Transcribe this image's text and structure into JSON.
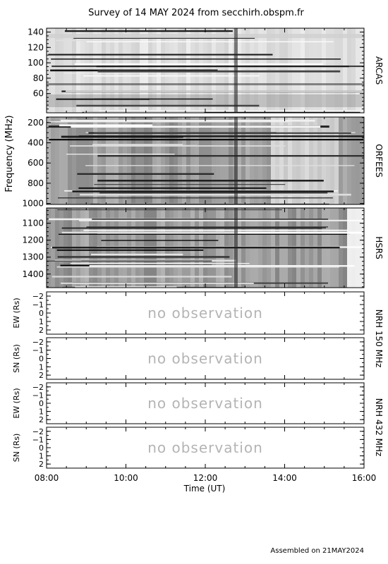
{
  "title": "Survey of 14 MAY 2024 from secchirh.obspm.fr",
  "footer": "Assembled on 21MAY2024",
  "colors": {
    "frame": "#000000",
    "no_observation_text": "#b4b4b4",
    "background": "#ffffff"
  },
  "chart_data": [
    {
      "type": "heatmap",
      "panel": "ARCAS",
      "label": "ARCAS",
      "ylim": [
        145,
        35
      ],
      "yticks": [
        60,
        80,
        100,
        120,
        140
      ],
      "ylabel": ""
    },
    {
      "type": "heatmap",
      "panel": "ORFEES",
      "label": "ORFEES",
      "ylim": [
        145,
        1010
      ],
      "yticks": [
        200,
        400,
        600,
        800,
        1000
      ],
      "ylabel": "Frequency (MHz)"
    },
    {
      "type": "heatmap",
      "panel": "HSRS",
      "label": "HSRS",
      "ylim": [
        1010,
        1480
      ],
      "yticks": [
        1100,
        1200,
        1300,
        1400
      ],
      "ylabel": ""
    },
    {
      "type": "scatter",
      "panel": "NRH 150 EW",
      "ylabel": "EW (Rs)",
      "ylim": [
        -2.5,
        2.5
      ],
      "yticks": [
        2,
        1,
        0,
        -1,
        -2
      ],
      "annotation": "no observation"
    },
    {
      "type": "scatter",
      "panel": "NRH 150 SN",
      "ylabel": "SN (Rs)",
      "ylim": [
        -2.5,
        2.5
      ],
      "yticks": [
        2,
        1,
        0,
        -1,
        -2
      ],
      "annotation": "no observation"
    },
    {
      "type": "scatter",
      "panel": "NRH 432 EW",
      "ylabel": "EW (Rs)",
      "ylim": [
        -2.5,
        2.5
      ],
      "yticks": [
        2,
        1,
        0,
        -1,
        -2
      ],
      "annotation": "no observation"
    },
    {
      "type": "scatter",
      "panel": "NRH 432 SN",
      "ylabel": "SN (Rs)",
      "ylim": [
        -2.5,
        2.5
      ],
      "yticks": [
        2,
        1,
        0,
        -1,
        -2
      ],
      "annotation": "no observation"
    }
  ],
  "right_labels": {
    "nrh150": "NRH 150 MHz",
    "nrh432": "NRH 432 MHz"
  },
  "x_axis": {
    "label": "Time (UT)",
    "ticks": [
      "08:00",
      "10:00",
      "12:00",
      "14:00",
      "16:00"
    ],
    "xlim": [
      "08:00",
      "16:00"
    ]
  }
}
